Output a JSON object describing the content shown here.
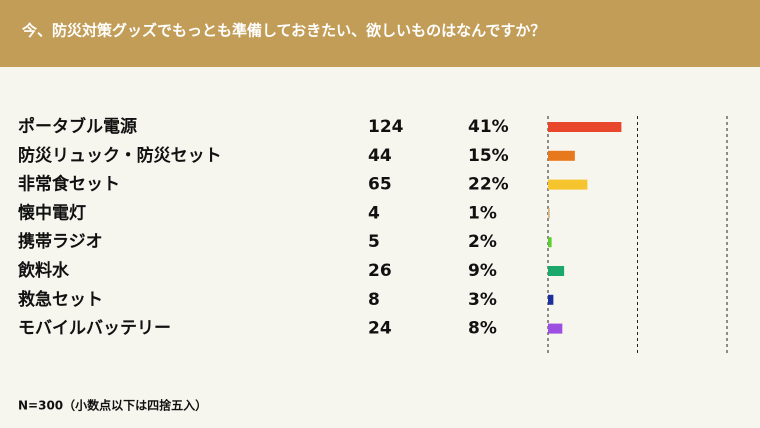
{
  "chart_data": {
    "type": "bar",
    "title": "今、防災対策グッズでもっとも準備しておきたい、欲しいものはなんですか？",
    "categories": [
      "ポータブル電源",
      "防災リュック・防災セット",
      "非常食セット",
      "懐中電灯",
      "携帯ラジオ",
      "飲料水",
      "救急セット",
      "モバイルバッテリー"
    ],
    "counts": [
      124,
      44,
      65,
      4,
      5,
      26,
      8,
      24
    ],
    "values": [
      41,
      15,
      22,
      1,
      2,
      9,
      3,
      8
    ],
    "value_labels": [
      "41%",
      "15%",
      "22%",
      "1%",
      "2%",
      "9%",
      "3%",
      "8%"
    ],
    "colors": [
      "#e8472b",
      "#e8781c",
      "#f6c52d",
      "#d9b487",
      "#5ccd2f",
      "#1aa96b",
      "#1f2f9b",
      "#9c4fe0"
    ],
    "xlim": [
      0,
      100
    ],
    "xticks": [
      0,
      50,
      100
    ],
    "grid": true,
    "note": "N=300（小数点以下は四捨五入）"
  }
}
